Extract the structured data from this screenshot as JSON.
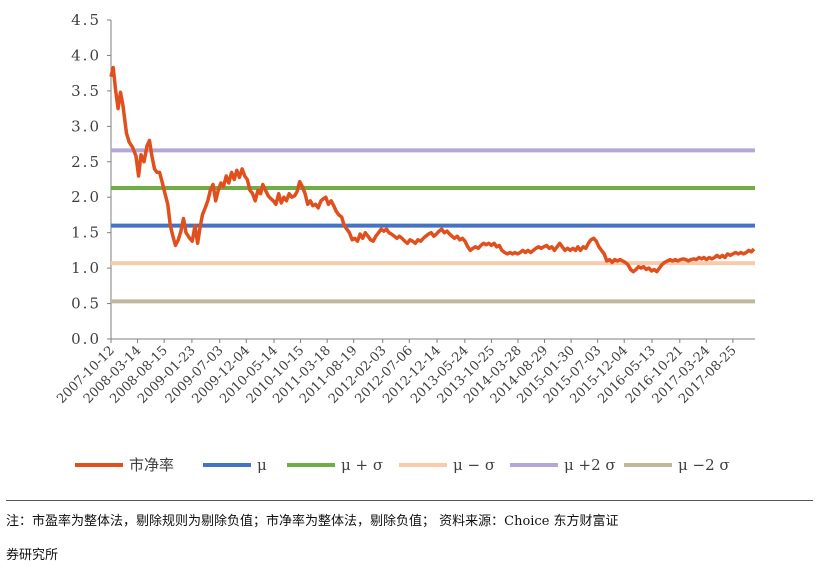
{
  "chart_data": {
    "type": "line",
    "title": "",
    "xlabel": "",
    "ylabel": "",
    "ylim": [
      0,
      4.5
    ],
    "yticks": [
      "0.0",
      "0.5",
      "1.0",
      "1.5",
      "2.0",
      "2.5",
      "3.0",
      "3.5",
      "4.0",
      "4.5"
    ],
    "x_range": [
      "2007-10-12",
      "2017-12-31"
    ],
    "xticks": [
      "2007-10-12",
      "2008-03-14",
      "2008-08-15",
      "2009-01-23",
      "2009-07-03",
      "2009-12-04",
      "2010-05-14",
      "2010-10-15",
      "2011-03-18",
      "2011-08-19",
      "2012-02-03",
      "2012-07-06",
      "2012-12-14",
      "2013-05-24",
      "2013-10-25",
      "2014-03-28",
      "2014-08-29",
      "2015-01-30",
      "2015-07-03",
      "2015-12-04",
      "2016-05-13",
      "2016-10-21",
      "2017-03-24",
      "2017-08-25"
    ],
    "grid": false,
    "legend_position": "bottom",
    "series": [
      {
        "name": "市净率",
        "color": "#e0501e",
        "points": [
          [
            "2007-10-12",
            3.7
          ],
          [
            "2007-10-25",
            3.83
          ],
          [
            "2007-11-08",
            3.5
          ],
          [
            "2007-11-22",
            3.25
          ],
          [
            "2007-12-06",
            3.48
          ],
          [
            "2007-12-20",
            3.3
          ],
          [
            "2008-01-10",
            2.9
          ],
          [
            "2008-01-25",
            2.78
          ],
          [
            "2008-02-15",
            2.7
          ],
          [
            "2008-03-05",
            2.58
          ],
          [
            "2008-03-20",
            2.3
          ],
          [
            "2008-04-03",
            2.6
          ],
          [
            "2008-04-20",
            2.5
          ],
          [
            "2008-05-08",
            2.73
          ],
          [
            "2008-05-22",
            2.8
          ],
          [
            "2008-06-05",
            2.58
          ],
          [
            "2008-06-20",
            2.4
          ],
          [
            "2008-07-05",
            2.35
          ],
          [
            "2008-07-20",
            2.35
          ],
          [
            "2008-08-05",
            2.2
          ],
          [
            "2008-08-20",
            2.05
          ],
          [
            "2008-09-05",
            1.9
          ],
          [
            "2008-09-20",
            1.6
          ],
          [
            "2008-10-05",
            1.45
          ],
          [
            "2008-10-20",
            1.32
          ],
          [
            "2008-11-05",
            1.4
          ],
          [
            "2008-11-20",
            1.52
          ],
          [
            "2008-12-05",
            1.7
          ],
          [
            "2008-12-20",
            1.5
          ],
          [
            "2009-01-10",
            1.42
          ],
          [
            "2009-01-25",
            1.38
          ],
          [
            "2009-02-10",
            1.6
          ],
          [
            "2009-02-25",
            1.35
          ],
          [
            "2009-03-10",
            1.55
          ],
          [
            "2009-03-25",
            1.75
          ],
          [
            "2009-04-10",
            1.85
          ],
          [
            "2009-04-25",
            1.95
          ],
          [
            "2009-05-10",
            2.1
          ],
          [
            "2009-05-25",
            2.18
          ],
          [
            "2009-06-10",
            1.95
          ],
          [
            "2009-06-25",
            2.1
          ],
          [
            "2009-07-10",
            2.2
          ],
          [
            "2009-07-25",
            2.15
          ],
          [
            "2009-08-10",
            2.3
          ],
          [
            "2009-08-25",
            2.2
          ],
          [
            "2009-09-10",
            2.35
          ],
          [
            "2009-09-25",
            2.25
          ],
          [
            "2009-10-10",
            2.38
          ],
          [
            "2009-10-25",
            2.28
          ],
          [
            "2009-11-10",
            2.4
          ],
          [
            "2009-11-25",
            2.3
          ],
          [
            "2009-12-10",
            2.25
          ],
          [
            "2009-12-25",
            2.1
          ],
          [
            "2010-01-10",
            2.05
          ],
          [
            "2010-01-25",
            1.95
          ],
          [
            "2010-02-10",
            2.1
          ],
          [
            "2010-02-25",
            2.05
          ],
          [
            "2010-03-10",
            2.18
          ],
          [
            "2010-03-25",
            2.1
          ],
          [
            "2010-04-10",
            2.02
          ],
          [
            "2010-04-25",
            1.98
          ],
          [
            "2010-05-10",
            1.95
          ],
          [
            "2010-05-25",
            1.9
          ],
          [
            "2010-06-10",
            2.05
          ],
          [
            "2010-06-25",
            1.92
          ],
          [
            "2010-07-10",
            2.0
          ],
          [
            "2010-07-25",
            1.95
          ],
          [
            "2010-08-10",
            2.05
          ],
          [
            "2010-08-25",
            2.0
          ],
          [
            "2010-09-10",
            2.02
          ],
          [
            "2010-09-25",
            2.08
          ],
          [
            "2010-10-10",
            2.22
          ],
          [
            "2010-10-25",
            2.15
          ],
          [
            "2010-11-10",
            2.05
          ],
          [
            "2010-11-25",
            1.9
          ],
          [
            "2010-12-10",
            1.95
          ],
          [
            "2010-12-25",
            1.88
          ],
          [
            "2011-01-10",
            1.9
          ],
          [
            "2011-01-25",
            1.85
          ],
          [
            "2011-02-10",
            1.95
          ],
          [
            "2011-02-25",
            1.98
          ],
          [
            "2011-03-10",
            2.0
          ],
          [
            "2011-03-25",
            1.9
          ],
          [
            "2011-04-10",
            1.95
          ],
          [
            "2011-04-25",
            1.88
          ],
          [
            "2011-05-10",
            1.8
          ],
          [
            "2011-05-25",
            1.75
          ],
          [
            "2011-06-10",
            1.72
          ],
          [
            "2011-06-25",
            1.6
          ],
          [
            "2011-07-10",
            1.55
          ],
          [
            "2011-07-25",
            1.5
          ],
          [
            "2011-08-10",
            1.4
          ],
          [
            "2011-08-25",
            1.42
          ],
          [
            "2011-09-10",
            1.38
          ],
          [
            "2011-09-25",
            1.48
          ],
          [
            "2011-10-10",
            1.42
          ],
          [
            "2011-10-25",
            1.5
          ],
          [
            "2011-11-10",
            1.45
          ],
          [
            "2011-11-25",
            1.4
          ],
          [
            "2011-12-10",
            1.38
          ],
          [
            "2011-12-25",
            1.45
          ],
          [
            "2012-01-10",
            1.5
          ],
          [
            "2012-01-25",
            1.55
          ],
          [
            "2012-02-10",
            1.52
          ],
          [
            "2012-02-25",
            1.55
          ],
          [
            "2012-03-10",
            1.5
          ],
          [
            "2012-03-25",
            1.48
          ],
          [
            "2012-04-10",
            1.45
          ],
          [
            "2012-04-25",
            1.42
          ],
          [
            "2012-05-10",
            1.45
          ],
          [
            "2012-05-25",
            1.42
          ],
          [
            "2012-06-10",
            1.38
          ],
          [
            "2012-06-25",
            1.35
          ],
          [
            "2012-07-10",
            1.4
          ],
          [
            "2012-07-25",
            1.38
          ],
          [
            "2012-08-10",
            1.35
          ],
          [
            "2012-08-25",
            1.4
          ],
          [
            "2012-09-10",
            1.38
          ],
          [
            "2012-09-25",
            1.42
          ],
          [
            "2012-10-10",
            1.45
          ],
          [
            "2012-10-25",
            1.48
          ],
          [
            "2012-11-10",
            1.5
          ],
          [
            "2012-11-25",
            1.45
          ],
          [
            "2012-12-10",
            1.48
          ],
          [
            "2012-12-25",
            1.52
          ],
          [
            "2013-01-10",
            1.55
          ],
          [
            "2013-01-25",
            1.5
          ],
          [
            "2013-02-10",
            1.52
          ],
          [
            "2013-02-25",
            1.48
          ],
          [
            "2013-03-10",
            1.45
          ],
          [
            "2013-03-25",
            1.42
          ],
          [
            "2013-04-10",
            1.45
          ],
          [
            "2013-04-25",
            1.4
          ],
          [
            "2013-05-10",
            1.42
          ],
          [
            "2013-05-25",
            1.38
          ],
          [
            "2013-06-10",
            1.3
          ],
          [
            "2013-06-25",
            1.25
          ],
          [
            "2013-07-10",
            1.28
          ],
          [
            "2013-07-25",
            1.3
          ],
          [
            "2013-08-10",
            1.28
          ],
          [
            "2013-08-25",
            1.32
          ],
          [
            "2013-09-10",
            1.35
          ],
          [
            "2013-09-25",
            1.33
          ],
          [
            "2013-10-10",
            1.35
          ],
          [
            "2013-10-25",
            1.32
          ],
          [
            "2013-11-10",
            1.35
          ],
          [
            "2013-11-25",
            1.3
          ],
          [
            "2013-12-10",
            1.32
          ],
          [
            "2013-12-25",
            1.25
          ],
          [
            "2014-01-10",
            1.22
          ],
          [
            "2014-01-25",
            1.2
          ],
          [
            "2014-02-10",
            1.22
          ],
          [
            "2014-02-25",
            1.2
          ],
          [
            "2014-03-10",
            1.22
          ],
          [
            "2014-03-25",
            1.2
          ],
          [
            "2014-04-10",
            1.22
          ],
          [
            "2014-04-25",
            1.25
          ],
          [
            "2014-05-10",
            1.22
          ],
          [
            "2014-05-25",
            1.25
          ],
          [
            "2014-06-10",
            1.22
          ],
          [
            "2014-06-25",
            1.25
          ],
          [
            "2014-07-10",
            1.28
          ],
          [
            "2014-07-25",
            1.3
          ],
          [
            "2014-08-10",
            1.28
          ],
          [
            "2014-08-25",
            1.3
          ],
          [
            "2014-09-10",
            1.32
          ],
          [
            "2014-09-25",
            1.28
          ],
          [
            "2014-10-10",
            1.3
          ],
          [
            "2014-10-25",
            1.25
          ],
          [
            "2014-11-10",
            1.3
          ],
          [
            "2014-11-25",
            1.35
          ],
          [
            "2014-12-10",
            1.3
          ],
          [
            "2014-12-25",
            1.25
          ],
          [
            "2015-01-10",
            1.28
          ],
          [
            "2015-01-25",
            1.25
          ],
          [
            "2015-02-10",
            1.28
          ],
          [
            "2015-02-25",
            1.25
          ],
          [
            "2015-03-10",
            1.3
          ],
          [
            "2015-03-25",
            1.25
          ],
          [
            "2015-04-10",
            1.3
          ],
          [
            "2015-04-25",
            1.28
          ],
          [
            "2015-05-10",
            1.35
          ],
          [
            "2015-05-25",
            1.4
          ],
          [
            "2015-06-10",
            1.42
          ],
          [
            "2015-06-25",
            1.38
          ],
          [
            "2015-07-10",
            1.3
          ],
          [
            "2015-07-25",
            1.25
          ],
          [
            "2015-08-10",
            1.2
          ],
          [
            "2015-08-25",
            1.1
          ],
          [
            "2015-09-10",
            1.12
          ],
          [
            "2015-09-25",
            1.08
          ],
          [
            "2015-10-10",
            1.12
          ],
          [
            "2015-10-25",
            1.1
          ],
          [
            "2015-11-10",
            1.12
          ],
          [
            "2015-11-25",
            1.1
          ],
          [
            "2015-12-10",
            1.08
          ],
          [
            "2015-12-25",
            1.05
          ],
          [
            "2016-01-10",
            0.98
          ],
          [
            "2016-01-25",
            0.95
          ],
          [
            "2016-02-10",
            0.98
          ],
          [
            "2016-02-25",
            1.02
          ],
          [
            "2016-03-10",
            1.0
          ],
          [
            "2016-03-25",
            1.02
          ],
          [
            "2016-04-10",
            0.98
          ],
          [
            "2016-04-25",
            1.0
          ],
          [
            "2016-05-10",
            0.96
          ],
          [
            "2016-05-25",
            0.98
          ],
          [
            "2016-06-10",
            0.95
          ],
          [
            "2016-06-25",
            1.0
          ],
          [
            "2016-07-10",
            1.05
          ],
          [
            "2016-07-25",
            1.08
          ],
          [
            "2016-08-10",
            1.1
          ],
          [
            "2016-08-25",
            1.12
          ],
          [
            "2016-09-10",
            1.1
          ],
          [
            "2016-09-25",
            1.12
          ],
          [
            "2016-10-10",
            1.1
          ],
          [
            "2016-10-25",
            1.12
          ],
          [
            "2016-11-10",
            1.13
          ],
          [
            "2016-11-25",
            1.12
          ],
          [
            "2016-12-10",
            1.1
          ],
          [
            "2016-12-25",
            1.12
          ],
          [
            "2017-01-10",
            1.13
          ],
          [
            "2017-01-25",
            1.12
          ],
          [
            "2017-02-10",
            1.15
          ],
          [
            "2017-02-25",
            1.13
          ],
          [
            "2017-03-10",
            1.15
          ],
          [
            "2017-03-25",
            1.12
          ],
          [
            "2017-04-10",
            1.15
          ],
          [
            "2017-04-25",
            1.13
          ],
          [
            "2017-05-10",
            1.15
          ],
          [
            "2017-05-25",
            1.18
          ],
          [
            "2017-06-10",
            1.15
          ],
          [
            "2017-06-25",
            1.18
          ],
          [
            "2017-07-10",
            1.15
          ],
          [
            "2017-07-25",
            1.2
          ],
          [
            "2017-08-10",
            1.18
          ],
          [
            "2017-08-25",
            1.2
          ],
          [
            "2017-09-10",
            1.22
          ],
          [
            "2017-09-25",
            1.2
          ],
          [
            "2017-10-10",
            1.22
          ],
          [
            "2017-10-25",
            1.2
          ],
          [
            "2017-11-10",
            1.22
          ],
          [
            "2017-11-25",
            1.25
          ],
          [
            "2017-12-10",
            1.23
          ],
          [
            "2017-12-25",
            1.27
          ]
        ]
      },
      {
        "name": "μ",
        "color": "#4472c4",
        "constant": 1.6
      },
      {
        "name": "μ+σ",
        "color": "#70ad47",
        "constant": 2.13
      },
      {
        "name": "μ−σ",
        "color": "#f8cbad",
        "constant": 1.07
      },
      {
        "name": "μ+2σ",
        "color": "#b4a7d6",
        "constant": 2.66
      },
      {
        "name": "μ−2σ",
        "color": "#c0b89a",
        "constant": 0.53
      }
    ]
  },
  "legend": [
    {
      "label": "市净率",
      "color": "#e0501e"
    },
    {
      "label": "μ",
      "color": "#4472c4"
    },
    {
      "label": "μ + σ",
      "color": "#70ad47"
    },
    {
      "label": "μ − σ",
      "color": "#f8cbad"
    },
    {
      "label": "μ +2 σ",
      "color": "#b4a7d6"
    },
    {
      "label": "μ −2 σ",
      "color": "#c0b89a"
    }
  ],
  "notes": {
    "line1": "注：市盈率为整体法，剔除规则为剔除负值；市净率为整体法，剔除负值；     资料来源：Choice 东方财富证",
    "line2": "券研究所"
  }
}
